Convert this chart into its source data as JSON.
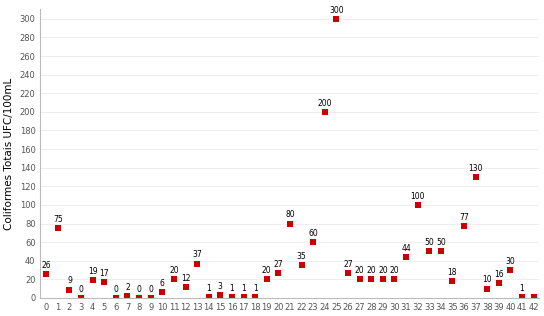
{
  "x": [
    0,
    1,
    2,
    3,
    4,
    5,
    6,
    7,
    8,
    9,
    10,
    11,
    12,
    13,
    14,
    15,
    16,
    17,
    18,
    19,
    20,
    21,
    22,
    23,
    24,
    25,
    26,
    27,
    28,
    29,
    30,
    31,
    32,
    33,
    34,
    35,
    36,
    37,
    38,
    39,
    40,
    41,
    42
  ],
  "y": [
    26,
    75,
    9,
    0,
    19,
    17,
    0,
    2,
    0,
    0,
    6,
    20,
    12,
    37,
    1,
    3,
    1,
    1,
    1,
    20,
    27,
    80,
    35,
    60,
    200,
    300,
    27,
    20,
    20,
    20,
    20,
    44,
    100,
    50,
    50,
    18,
    77,
    130,
    10,
    16,
    30,
    1,
    1
  ],
  "labels": [
    "26",
    "75",
    "9",
    "0",
    "19",
    "17",
    "0",
    "2",
    "0",
    "0",
    "6",
    "20",
    "12",
    "37",
    "1",
    "3",
    "1",
    "1",
    "1",
    "20",
    "27",
    "80",
    "35",
    "60",
    "200",
    "300",
    "27",
    "20",
    "20",
    "20",
    "20",
    "44",
    "100",
    "50",
    "50",
    "18",
    "77",
    "130",
    "10",
    "16",
    "30",
    "1",
    ""
  ],
  "marker_color": "#cc0000",
  "ylabel": "Coliformes Totais UFC/100mL",
  "ylim": [
    0,
    310
  ],
  "xlim": [
    -0.5,
    42.5
  ],
  "yticks": [
    0,
    20,
    40,
    60,
    80,
    100,
    120,
    140,
    160,
    180,
    200,
    220,
    240,
    260,
    280,
    300
  ],
  "xticks": [
    0,
    1,
    2,
    3,
    4,
    5,
    6,
    7,
    8,
    9,
    10,
    11,
    12,
    13,
    14,
    15,
    16,
    17,
    18,
    19,
    20,
    21,
    22,
    23,
    24,
    25,
    26,
    27,
    28,
    29,
    30,
    31,
    32,
    33,
    34,
    35,
    36,
    37,
    38,
    39,
    40,
    41,
    42
  ],
  "label_fontsize": 5.5,
  "axis_fontsize": 7.5,
  "tick_fontsize": 6,
  "background_color": "#ffffff",
  "spine_color": "#bbbbbb",
  "grid_color": "#e8e8e8"
}
